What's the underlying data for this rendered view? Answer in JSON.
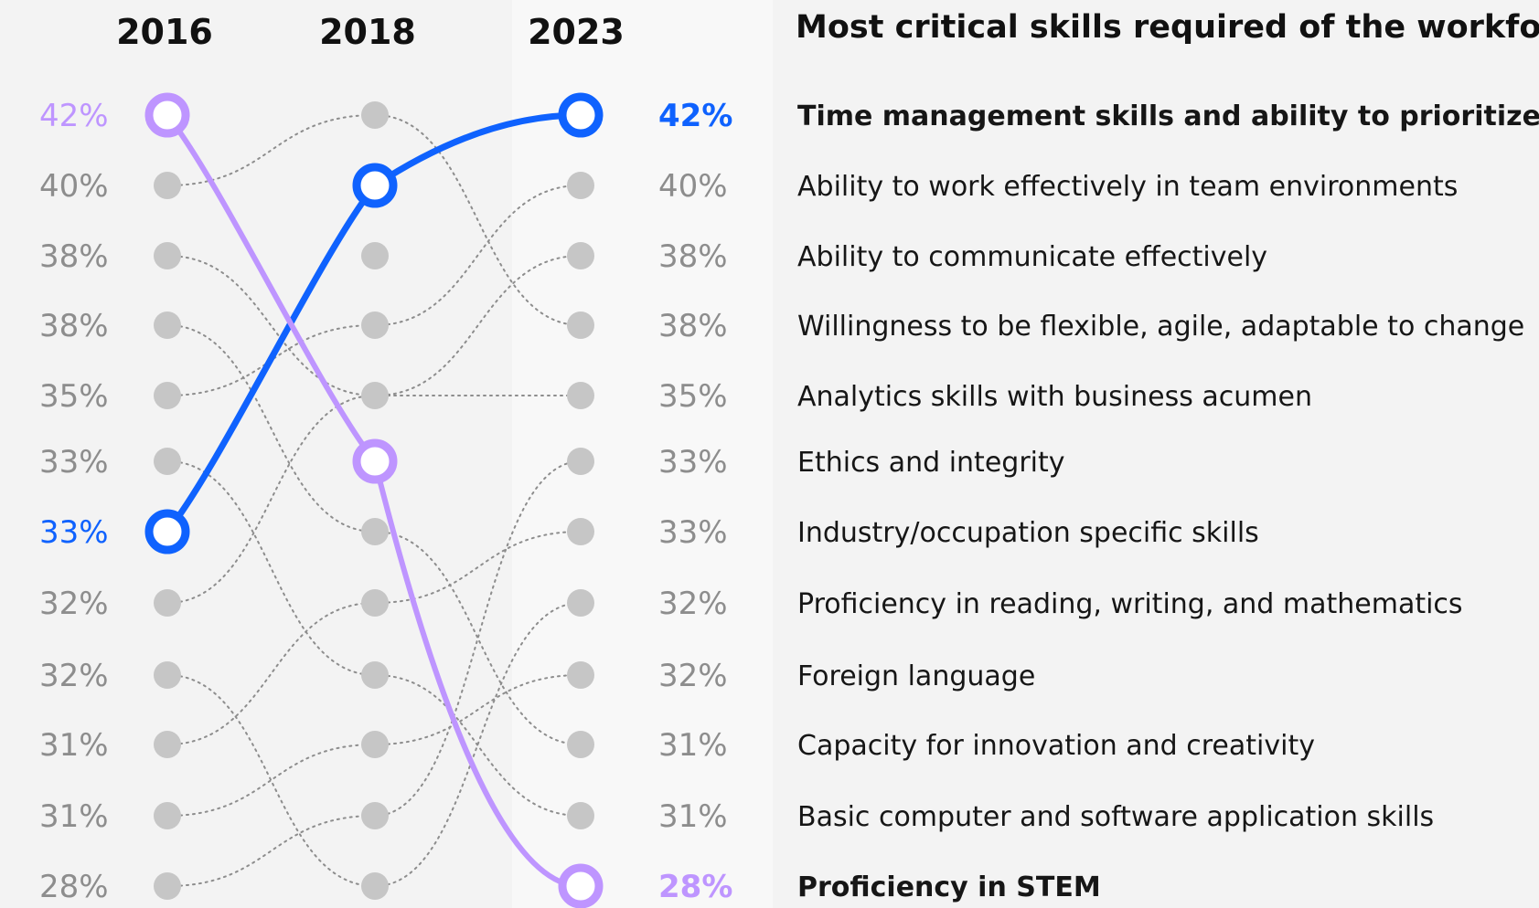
{
  "chart_data": {
    "type": "line",
    "title": "Most critical skills required of the workforce",
    "years": [
      "2016",
      "2018",
      "2023"
    ],
    "left_values": [
      "42%",
      "40%",
      "38%",
      "38%",
      "35%",
      "33%",
      "33%",
      "32%",
      "32%",
      "31%",
      "31%",
      "28%"
    ],
    "skills": [
      {
        "name": "Time management skills and ability to prioritize",
        "value": "42%",
        "ranks": [
          7,
          2,
          1
        ],
        "highlight": "#0f62fe"
      },
      {
        "name": "Ability to work effectively in team environments",
        "value": "40%",
        "ranks": [
          5,
          4,
          2
        ]
      },
      {
        "name": "Ability to communicate effectively",
        "value": "38%",
        "ranks": [
          3,
          5,
          3
        ]
      },
      {
        "name": "Willingness to be flexible, agile, adaptable to change",
        "value": "38%",
        "ranks": [
          2,
          1,
          4
        ]
      },
      {
        "name": "Analytics skills with business acumen",
        "value": "35%",
        "ranks": [
          8,
          5,
          5
        ]
      },
      {
        "name": "Ethics and integrity",
        "value": "33%",
        "ranks": [
          12,
          11,
          6
        ]
      },
      {
        "name": "Industry/occupation specific skills",
        "value": "33%",
        "ranks": [
          10,
          8,
          7
        ]
      },
      {
        "name": "Proficiency in reading, writing, and mathematics",
        "value": "32%",
        "ranks": [
          9,
          12,
          8
        ]
      },
      {
        "name": "Foreign language",
        "value": "32%",
        "ranks": [
          11,
          10,
          9
        ]
      },
      {
        "name": "Capacity for innovation and creativity",
        "value": "31%",
        "ranks": [
          4,
          7,
          10
        ]
      },
      {
        "name": "Basic computer and software application skills",
        "value": "31%",
        "ranks": [
          6,
          9,
          11
        ]
      },
      {
        "name": "Proficiency in STEM",
        "value": "28%",
        "ranks": [
          1,
          6,
          12
        ],
        "highlight": "#be95ff"
      }
    ],
    "colors": {
      "accent_blue": "#0f62fe",
      "accent_purple": "#be95ff",
      "muted_dot": "#c6c6c6",
      "muted_text": "#8d8d8d"
    }
  }
}
